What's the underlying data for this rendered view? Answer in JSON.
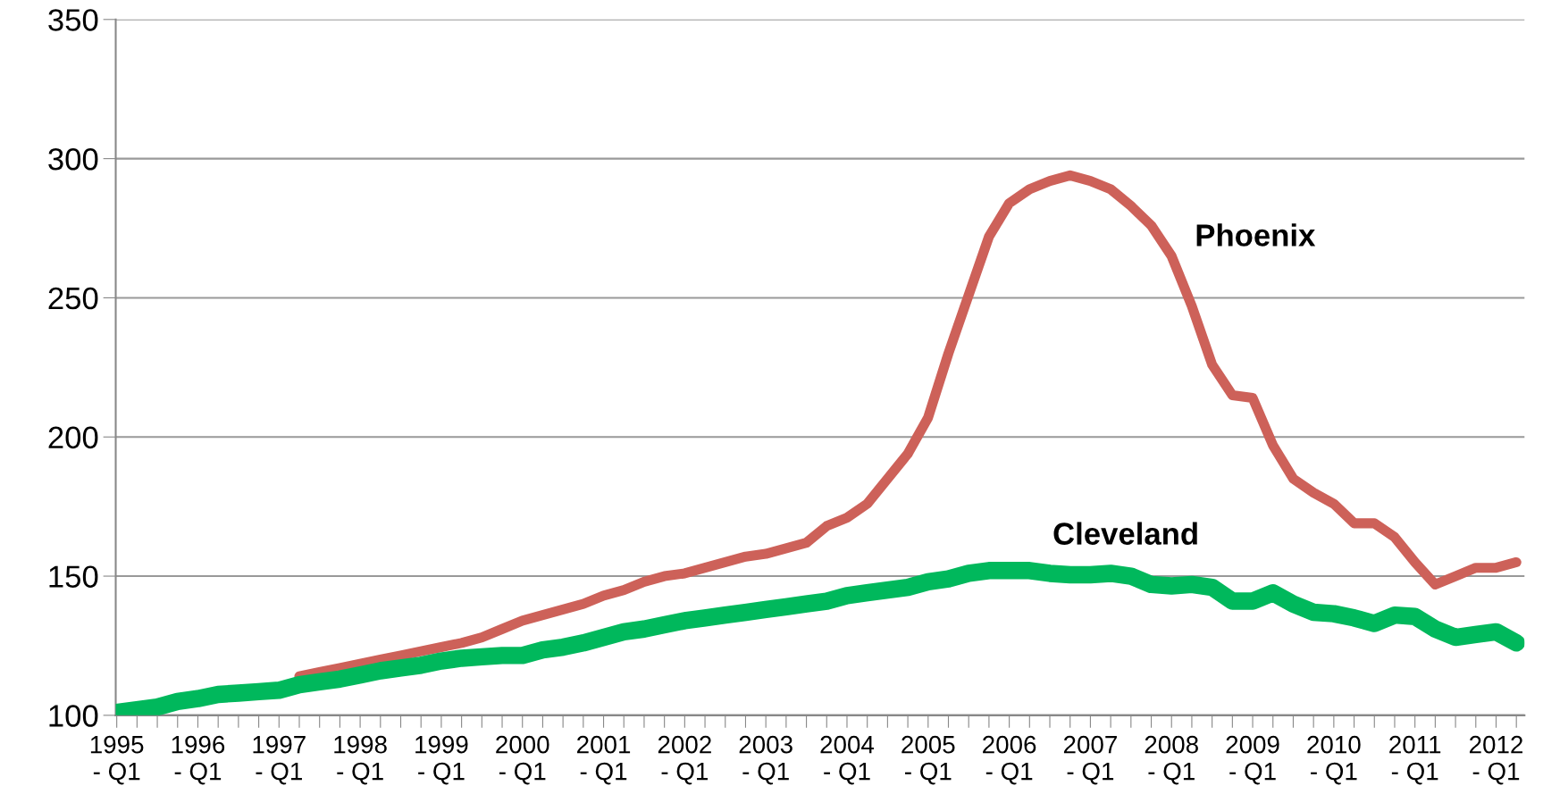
{
  "chart_data": {
    "type": "line",
    "categories": [
      "1995 - Q1",
      null,
      null,
      null,
      "1996 - Q1",
      null,
      null,
      null,
      "1997 - Q1",
      null,
      null,
      null,
      "1998 - Q1",
      null,
      null,
      null,
      "1999 - Q1",
      null,
      null,
      null,
      "2000 - Q1",
      null,
      null,
      null,
      "2001 - Q1",
      null,
      null,
      null,
      "2002 - Q1",
      null,
      null,
      null,
      "2003 - Q1",
      null,
      null,
      null,
      "2004 - Q1",
      null,
      null,
      null,
      "2005 - Q1",
      null,
      null,
      null,
      "2006 - Q1",
      null,
      null,
      null,
      "2007 - Q1",
      null,
      null,
      null,
      "2008 - Q1",
      null,
      null,
      null,
      "2009 - Q1",
      null,
      null,
      null,
      "2010 - Q1",
      null,
      null,
      null,
      "2011 - Q1",
      null,
      null,
      null,
      "2012 - Q1",
      null
    ],
    "series": [
      {
        "name": "Phoenix",
        "color": "#cd6159",
        "values": [
          null,
          null,
          null,
          null,
          null,
          null,
          null,
          null,
          null,
          114,
          115.5,
          117,
          118.5,
          120,
          121.5,
          123,
          124.5,
          126,
          128,
          131,
          134,
          136,
          138,
          140,
          143,
          145,
          148,
          150,
          151,
          153,
          155,
          157,
          158,
          160,
          162,
          168,
          171,
          176,
          185,
          194,
          207,
          230,
          251,
          272,
          284,
          289,
          292,
          294,
          292,
          289,
          283,
          276,
          265,
          247,
          226,
          215,
          214,
          197,
          185,
          180,
          176,
          169,
          169,
          164,
          155,
          147,
          150,
          153,
          153,
          155
        ]
      },
      {
        "name": "Cleveland",
        "color": "#00b85c",
        "values": [
          101,
          102,
          103,
          105,
          106,
          107.5,
          108,
          108.5,
          109,
          111,
          112,
          113,
          114.5,
          116,
          117,
          118,
          119.5,
          120.5,
          121,
          121.5,
          121.5,
          123.5,
          124.5,
          126,
          128,
          130,
          131,
          132.5,
          134,
          135,
          136,
          137,
          138,
          139,
          140,
          141,
          143,
          144,
          145,
          146,
          148,
          149,
          151,
          152,
          152,
          152,
          151,
          150.5,
          150.5,
          151,
          150,
          147,
          146.5,
          147,
          146,
          141,
          141,
          144,
          140,
          137,
          136.5,
          135,
          133,
          136,
          135.5,
          131,
          128,
          129,
          130,
          126
        ]
      }
    ],
    "ylim": [
      100,
      350
    ],
    "yticks": [
      100,
      150,
      200,
      250,
      300,
      350
    ],
    "grid": "y",
    "legend": false,
    "marker": "none",
    "line_style": "solid"
  }
}
